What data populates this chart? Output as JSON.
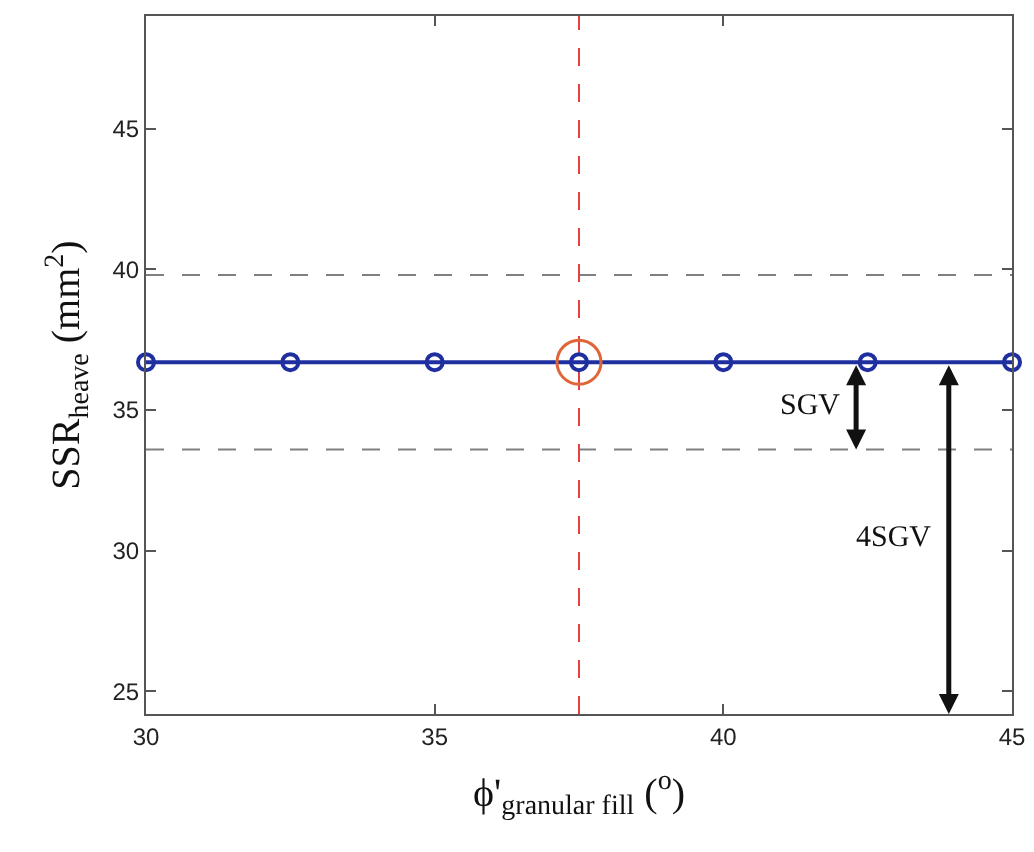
{
  "chart_data": {
    "type": "line",
    "xlabel": "ϕ'$_{granular fill}$ ($^{o}$)",
    "ylabel": "SSR$_{heave}$ (mm$^{2}$)",
    "series": [
      {
        "color": "#1f2f9f",
        "x": [
          30,
          32.5,
          35,
          37.5,
          40,
          42.5,
          45
        ],
        "values": [
          36.7,
          36.7,
          36.7,
          36.7,
          36.7,
          36.7,
          36.7
        ],
        "marker": "circle",
        "line_style": "solid"
      },
      {
        "type": "scatter",
        "color": "#e0663a",
        "x": [
          37.5
        ],
        "values": [
          36.7
        ],
        "marker": "circle"
      }
    ],
    "xlim": [
      30,
      45
    ],
    "xticks": [
      30,
      35,
      40,
      45
    ],
    "ylim": [
      24.2,
      49
    ],
    "yticks": [
      25,
      30,
      35,
      40,
      45
    ],
    "ref_lines": [
      {
        "axis": "y",
        "value": 39.8,
        "color": "#808080",
        "line_style": "dashed"
      },
      {
        "axis": "y",
        "value": 33.6,
        "color": "#808080",
        "line_style": "dashed"
      },
      {
        "axis": "x",
        "value": 37.5,
        "color": "#e84040",
        "line_style": "dashed"
      }
    ],
    "annotations": [
      {
        "text": "SGV",
        "x": 42.3,
        "y": 33.6
      },
      "4SGV"
    ],
    "grid": false
  }
}
